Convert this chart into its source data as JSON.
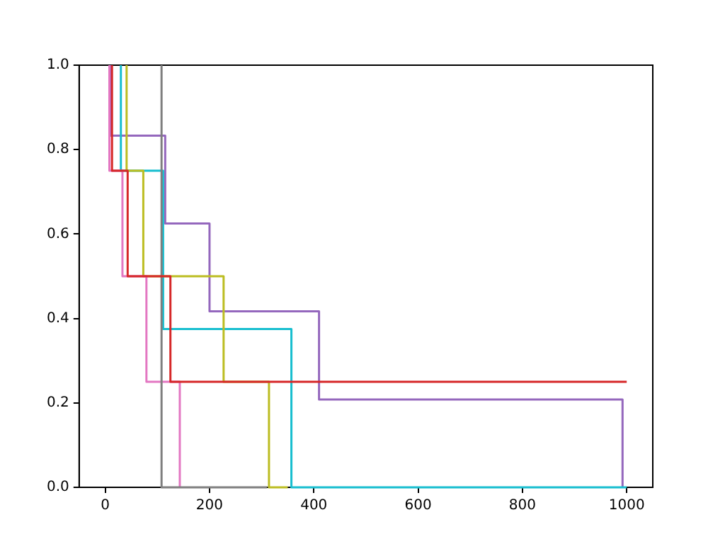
{
  "chart_data": {
    "type": "step",
    "xlim": [
      -50,
      1050
    ],
    "ylim": [
      0,
      1
    ],
    "xticks": [
      0,
      200,
      400,
      600,
      800,
      1000
    ],
    "yticks": [
      {
        "value": 0,
        "label": "0.0"
      },
      {
        "value": 0.2,
        "label": "0.2"
      },
      {
        "value": 0.4,
        "label": "0.4"
      },
      {
        "value": 0.6,
        "label": "0.6"
      },
      {
        "value": 0.8,
        "label": "0.8"
      },
      {
        "value": 1,
        "label": "1.0"
      }
    ],
    "grid": false,
    "legend": false,
    "marker": "none",
    "line_style": "solid",
    "series": [
      {
        "color": "#d62728",
        "x": [
          13,
          13,
          43,
          125,
          1000
        ],
        "values": [
          1,
          0.75,
          0.5,
          0.25,
          0.25
        ]
      },
      {
        "color": "#7f7f7f",
        "x": [
          108,
          108,
          310
        ],
        "values": [
          1,
          0,
          0
        ]
      },
      {
        "color": "#e377c2",
        "x": [
          8,
          8,
          33,
          79,
          143
        ],
        "values": [
          1,
          0.75,
          0.5,
          0.25,
          0
        ]
      },
      {
        "color": "#bcbd22",
        "x": [
          41,
          41,
          73,
          227,
          314,
          350
        ],
        "values": [
          1,
          0.75,
          0.5,
          0.25,
          0,
          0
        ]
      },
      {
        "color": "#17becf",
        "x": [
          30,
          30,
          111,
          357,
          1000
        ],
        "values": [
          1,
          0.75,
          0.375,
          0,
          0
        ]
      },
      {
        "color": "#9467bd",
        "x": [
          10,
          10,
          115,
          200,
          410,
          992
        ],
        "values": [
          1,
          0.833,
          0.625,
          0.417,
          0.208,
          0
        ]
      }
    ]
  }
}
